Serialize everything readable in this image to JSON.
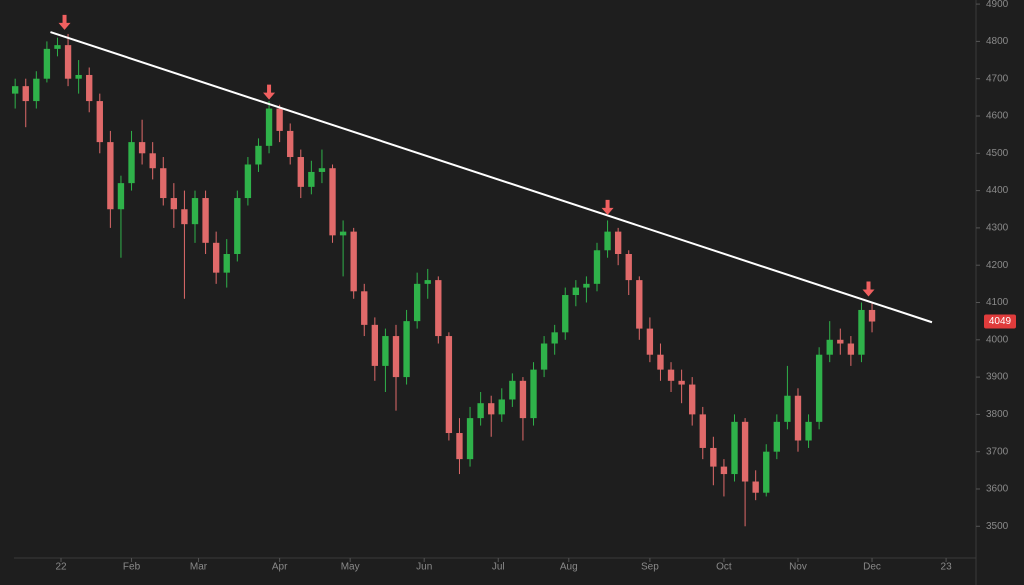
{
  "chart_data": {
    "type": "candlestick",
    "up_color": "#2fb24a",
    "down_color": "#e06a6a",
    "x": [
      -13,
      -10,
      -7,
      -4,
      -1,
      2,
      5,
      8,
      11,
      14,
      17,
      20,
      23,
      26,
      29,
      32,
      35,
      38,
      41,
      44,
      47,
      50,
      53,
      56,
      59,
      62,
      65,
      68,
      71,
      74,
      77,
      80,
      83,
      86,
      89,
      92,
      95,
      98,
      101,
      104,
      107,
      110,
      113,
      116,
      119,
      122,
      125,
      128,
      131,
      134,
      137,
      140,
      143,
      146,
      149,
      152,
      155,
      158,
      161,
      164,
      167,
      170,
      173,
      176,
      179,
      182,
      185,
      188,
      191,
      194,
      197,
      200,
      203,
      206,
      209,
      212,
      215,
      218,
      221,
      224,
      227,
      230
    ],
    "open": [
      4660,
      4680,
      4640,
      4700,
      4780,
      4790,
      4700,
      4710,
      4640,
      4530,
      4350,
      4420,
      4530,
      4500,
      4460,
      4380,
      4350,
      4310,
      4380,
      4260,
      4180,
      4230,
      4380,
      4470,
      4520,
      4620,
      4560,
      4490,
      4410,
      4450,
      4460,
      4280,
      4290,
      4130,
      4040,
      3930,
      4010,
      3900,
      4050,
      4150,
      4160,
      4010,
      3750,
      3680,
      3790,
      3830,
      3800,
      3840,
      3890,
      3790,
      3920,
      3990,
      4020,
      4120,
      4140,
      4150,
      4240,
      4290,
      4230,
      4160,
      4030,
      3960,
      3920,
      3890,
      3880,
      3800,
      3710,
      3660,
      3640,
      3780,
      3620,
      3590,
      3700,
      3780,
      3850,
      3730,
      3780,
      3960,
      4000,
      3990,
      3960,
      4080
    ],
    "high": [
      4700,
      4700,
      4720,
      4800,
      4810,
      4820,
      4750,
      4730,
      4660,
      4560,
      4440,
      4560,
      4590,
      4530,
      4490,
      4420,
      4400,
      4400,
      4400,
      4290,
      4270,
      4400,
      4490,
      4540,
      4640,
      4630,
      4580,
      4510,
      4480,
      4510,
      4470,
      4320,
      4300,
      4150,
      4060,
      4030,
      4040,
      4080,
      4180,
      4190,
      4170,
      4020,
      3790,
      3820,
      3860,
      3850,
      3870,
      3910,
      3900,
      3940,
      4010,
      4040,
      4140,
      4160,
      4170,
      4260,
      4320,
      4300,
      4240,
      4170,
      4060,
      3990,
      3940,
      3920,
      3900,
      3820,
      3740,
      3680,
      3800,
      3790,
      3650,
      3720,
      3800,
      3930,
      3870,
      3800,
      3980,
      4050,
      4030,
      4010,
      4100,
      4100
    ],
    "low": [
      4620,
      4570,
      4620,
      4690,
      4760,
      4680,
      4660,
      4610,
      4500,
      4300,
      4220,
      4400,
      4470,
      4430,
      4360,
      4300,
      4110,
      4260,
      4230,
      4150,
      4140,
      4210,
      4360,
      4450,
      4500,
      4530,
      4470,
      4380,
      4390,
      4420,
      4260,
      4170,
      4110,
      4010,
      3890,
      3860,
      3810,
      3880,
      4030,
      4110,
      3990,
      3730,
      3640,
      3660,
      3770,
      3740,
      3780,
      3820,
      3730,
      3770,
      3900,
      3960,
      4000,
      4090,
      4100,
      4130,
      4220,
      4200,
      4120,
      4000,
      3940,
      3890,
      3860,
      3830,
      3770,
      3680,
      3610,
      3580,
      3620,
      3500,
      3570,
      3580,
      3680,
      3760,
      3700,
      3710,
      3760,
      3940,
      3960,
      3930,
      3940,
      4020
    ],
    "close": [
      4680,
      4640,
      4700,
      4780,
      4790,
      4700,
      4710,
      4640,
      4530,
      4350,
      4420,
      4530,
      4500,
      4460,
      4380,
      4350,
      4310,
      4380,
      4260,
      4180,
      4230,
      4380,
      4470,
      4520,
      4620,
      4560,
      4490,
      4410,
      4450,
      4460,
      4280,
      4290,
      4130,
      4040,
      3930,
      4010,
      3900,
      4050,
      4150,
      4160,
      4010,
      3750,
      3680,
      3790,
      3830,
      3800,
      3840,
      3890,
      3790,
      3920,
      3990,
      4020,
      4120,
      4140,
      4150,
      4240,
      4290,
      4230,
      4160,
      4030,
      3960,
      3920,
      3890,
      3880,
      3800,
      3710,
      3660,
      3640,
      3780,
      3620,
      3590,
      3700,
      3780,
      3850,
      3730,
      3780,
      3960,
      4000,
      3990,
      3960,
      4080,
      4049
    ],
    "xlim": [
      -17.3,
      259.2
    ],
    "ylim": [
      3423,
      4911
    ],
    "xticks": [
      {
        "value": 0,
        "label": "22"
      },
      {
        "value": 20,
        "label": "Feb"
      },
      {
        "value": 39,
        "label": "Mar"
      },
      {
        "value": 62,
        "label": "Apr"
      },
      {
        "value": 82,
        "label": "May"
      },
      {
        "value": 103,
        "label": "Jun"
      },
      {
        "value": 124,
        "label": "Jul"
      },
      {
        "value": 144,
        "label": "Aug"
      },
      {
        "value": 167,
        "label": "Sep"
      },
      {
        "value": 188,
        "label": "Oct"
      },
      {
        "value": 209,
        "label": "Nov"
      },
      {
        "value": 230,
        "label": "Dec"
      },
      {
        "value": 251,
        "label": "23"
      }
    ],
    "yticks": [
      3500,
      3600,
      3700,
      3800,
      3900,
      4000,
      4100,
      4200,
      4300,
      4400,
      4500,
      4600,
      4700,
      4800,
      4900
    ],
    "trendline": {
      "color": "#ffffff",
      "x": [
        -3,
        247
      ],
      "y": [
        4825,
        4047
      ]
    },
    "peak_markers": {
      "color": "#f06060",
      "x": [
        1,
        59,
        155,
        229
      ],
      "y": [
        4831,
        4644,
        4335,
        4116
      ]
    },
    "last_price": 4049
  }
}
